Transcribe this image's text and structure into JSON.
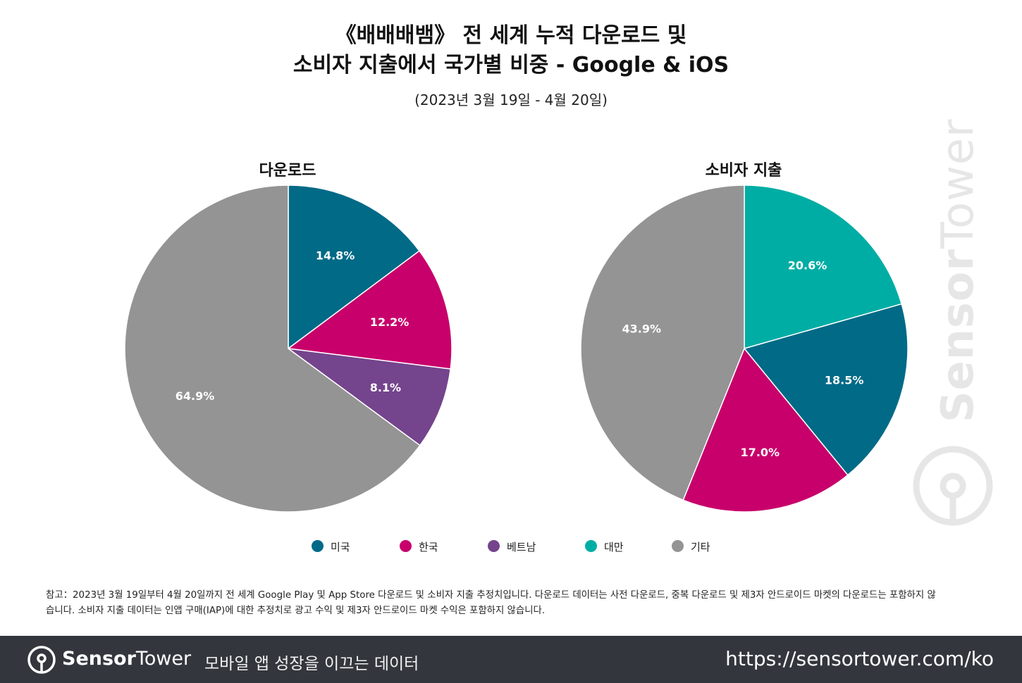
{
  "title_line1": "《배배배뱀》 전 세계 누적 다운로드 및",
  "title_line2": "소비자 지출에서 국가별 비중 - Google & iOS",
  "subtitle": "(2023년 3월 19일 - 4월 20일)",
  "chart_data": [
    {
      "type": "pie",
      "title": "다운로드",
      "categories": [
        "미국",
        "한국",
        "베트남",
        "기타"
      ],
      "values": [
        14.8,
        12.2,
        8.1,
        64.9
      ],
      "labels": [
        "14.8%",
        "12.2%",
        "8.1%",
        "64.9%"
      ],
      "colors": [
        "#006a87",
        "#c8006b",
        "#74448d",
        "#949494"
      ]
    },
    {
      "type": "pie",
      "title": "소비자 지출",
      "categories": [
        "대만",
        "미국",
        "한국",
        "기타"
      ],
      "values": [
        20.6,
        18.5,
        17.0,
        43.9
      ],
      "labels": [
        "20.6%",
        "18.5%",
        "17.0%",
        "43.9%"
      ],
      "colors": [
        "#00ada4",
        "#006a87",
        "#c8006b",
        "#949494"
      ]
    }
  ],
  "legend": [
    {
      "label": "미국",
      "color": "#006a87"
    },
    {
      "label": "한국",
      "color": "#c8006b"
    },
    {
      "label": "베트남",
      "color": "#74448d"
    },
    {
      "label": "대만",
      "color": "#00ada4"
    },
    {
      "label": "기타",
      "color": "#949494"
    }
  ],
  "note_line1": "참고：2023년 3월 19일부터 4월 20일까지 전 세계 Google Play 및 App Store 다운로드 및 소비자 지출 추정치입니다. 다운로드 데이터는 사전 다운로드, 중복 다운로드 및 제3자 안드로이드 마켓의 다운로드는 포함하지 않",
  "note_line2": "습니다. 소비자 지출 데이터는 인앱 구매(IAP)에 대한 추정치로 광고 수익 및 제3자 안드로이드 마켓 수익은 포함하지 않습니다.",
  "footer": {
    "brand_bold": "Sensor",
    "brand_light": "Tower",
    "tagline": "모바일 앱 성장을 이끄는 데이터",
    "url": "https://sensortower.com/ko"
  },
  "watermark": {
    "bold": "Sensor",
    "light": "Tower"
  }
}
